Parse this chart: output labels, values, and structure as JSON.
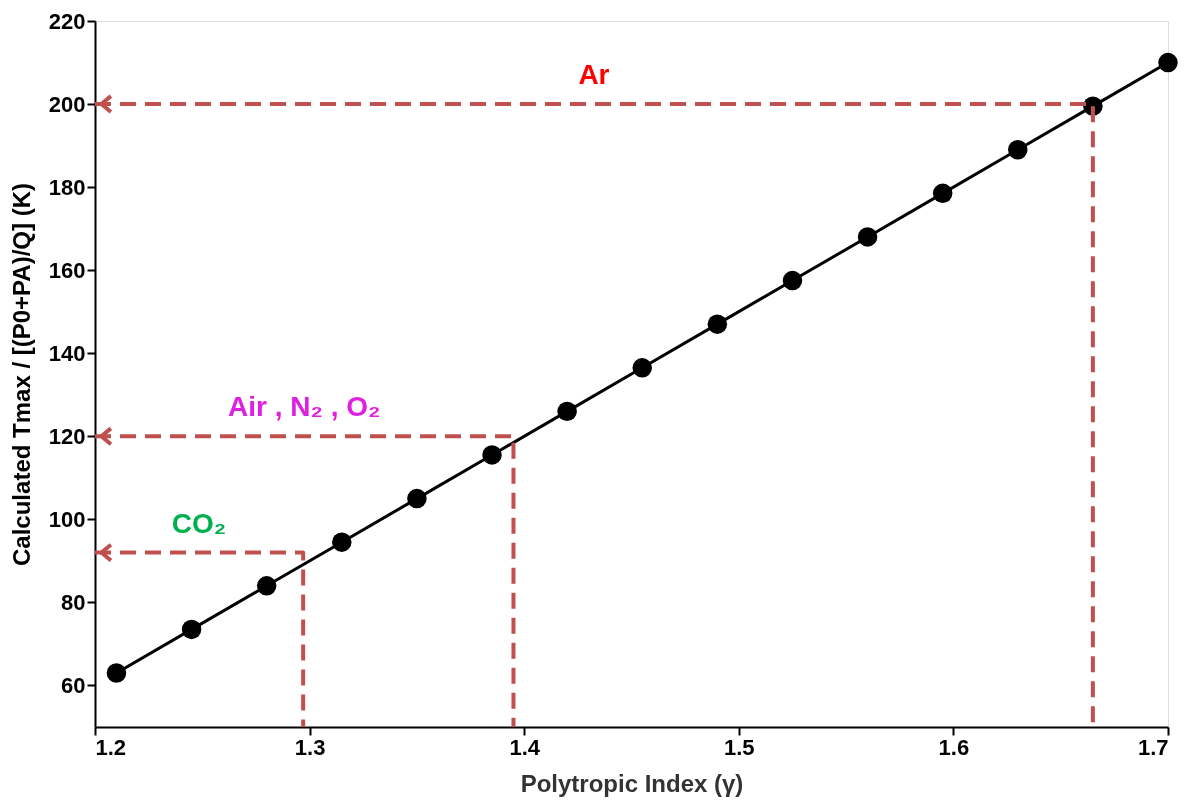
{
  "chart_data": {
    "type": "line",
    "xlabel": "Polytropic Index (γ)",
    "ylabel": "Calculated Tmax / [(P0+PA)/Q] (K)",
    "x": [
      1.21,
      1.245,
      1.28,
      1.315,
      1.35,
      1.385,
      1.42,
      1.455,
      1.49,
      1.525,
      1.56,
      1.595,
      1.63,
      1.665,
      1.7
    ],
    "series": [
      {
        "color": "#000000",
        "values": [
          63,
          73.5,
          84,
          94.5,
          105,
          115.5,
          126,
          136.5,
          147,
          157.5,
          168,
          178.5,
          189,
          199.5,
          210
        ]
      },
      {
        "name": "Ar",
        "color": "#c0504d",
        "line_style": "dashed",
        "marker": "none",
        "x": [
          1.2,
          1.665,
          1.665
        ],
        "values": [
          200,
          200,
          50
        ]
      },
      {
        "name": "Air , N₂ , O₂",
        "color": "#c0504d",
        "line_style": "dashed",
        "marker": "none",
        "x": [
          1.2,
          1.395,
          1.395
        ],
        "values": [
          120,
          120,
          50
        ]
      },
      {
        "name": "CO₂",
        "color": "#c0504d",
        "line_style": "dashed",
        "marker": "none",
        "x": [
          1.2,
          1.297,
          1.297
        ],
        "values": [
          92,
          92,
          50
        ]
      }
    ],
    "marker": "circle",
    "line_style": "solid",
    "grid": false,
    "xlim": [
      1.2,
      1.7
    ],
    "xticks": [
      1.2,
      1.3,
      1.4,
      1.5,
      1.6,
      1.7
    ],
    "ylim": [
      50,
      220
    ],
    "yticks": [
      60,
      80,
      100,
      120,
      140,
      160,
      180,
      200,
      220
    ]
  }
}
